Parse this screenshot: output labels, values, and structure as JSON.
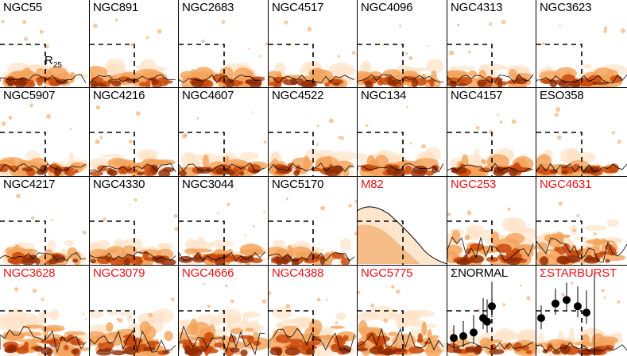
{
  "figure": {
    "rows": 4,
    "columns": 7,
    "annotation": {
      "text": "R",
      "subscript": "25"
    },
    "colors": {
      "normal_label": "#000000",
      "starburst_label": "#e8141c",
      "emission_light": "#fde3c8",
      "emission_mid": "#f4a25a",
      "emission_dark": "#c94a0c",
      "emission_peak": "#8e2a04",
      "box_dash": "#000000",
      "contour": "#000000",
      "stack_marker": "#000000"
    },
    "panels": [
      {
        "name": "NGC55",
        "type": "normal"
      },
      {
        "name": "NGC891",
        "type": "normal"
      },
      {
        "name": "NGC2683",
        "type": "normal"
      },
      {
        "name": "NGC4517",
        "type": "normal"
      },
      {
        "name": "NGC4096",
        "type": "normal"
      },
      {
        "name": "NGC4313",
        "type": "normal"
      },
      {
        "name": "NGC3623",
        "type": "normal"
      },
      {
        "name": "NGC5907",
        "type": "normal"
      },
      {
        "name": "NGC4216",
        "type": "normal"
      },
      {
        "name": "NGC4607",
        "type": "normal"
      },
      {
        "name": "NGC4522",
        "type": "normal"
      },
      {
        "name": "NGC134",
        "type": "normal"
      },
      {
        "name": "NGC4157",
        "type": "normal"
      },
      {
        "name": "ESO358",
        "type": "normal"
      },
      {
        "name": "NGC4217",
        "type": "normal"
      },
      {
        "name": "NGC4330",
        "type": "normal"
      },
      {
        "name": "NGC3044",
        "type": "normal"
      },
      {
        "name": "NGC5170",
        "type": "normal"
      },
      {
        "name": "M82",
        "type": "starburst"
      },
      {
        "name": "NGC253",
        "type": "starburst"
      },
      {
        "name": "NGC4631",
        "type": "starburst"
      },
      {
        "name": "NGC3628",
        "type": "starburst"
      },
      {
        "name": "NGC3079",
        "type": "starburst"
      },
      {
        "name": "NGC4666",
        "type": "starburst"
      },
      {
        "name": "NGC4388",
        "type": "starburst"
      },
      {
        "name": "NGC5775",
        "type": "starburst"
      },
      {
        "name": "ΣNORMAL",
        "type": "stack-normal"
      },
      {
        "name": "ΣSTARBURST",
        "type": "stack-starburst"
      }
    ]
  }
}
